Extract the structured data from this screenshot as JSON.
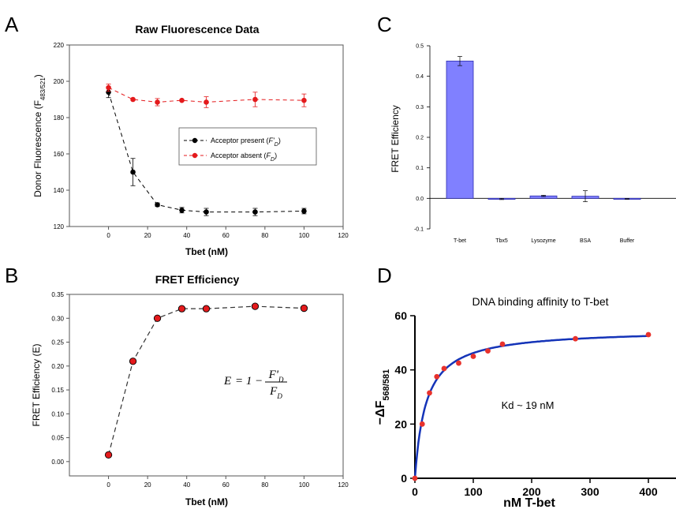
{
  "panel_letters": [
    "A",
    "B",
    "C",
    "D"
  ],
  "colors": {
    "black_series": "#000000",
    "red_series": "#e41a1c",
    "bar_fill": "#8080ff",
    "bar_stroke": "#2b2bb0",
    "fit_curve": "#1534b8",
    "points_d": "#e8322c",
    "frame": "#555555"
  },
  "chart_data": [
    {
      "panel": "A",
      "type": "scatter",
      "title": "Raw Fluorescence Data",
      "xlabel": "Tbet (nM)",
      "ylabel_main": "Donor Fluorescence (F",
      "ylabel_sub": "483/521",
      "ylabel_close": ")",
      "xlim": [
        -20,
        120
      ],
      "ylim": [
        120,
        220
      ],
      "xticks": [
        0,
        20,
        40,
        60,
        80,
        100,
        120
      ],
      "yticks": [
        120,
        140,
        160,
        180,
        200,
        220
      ],
      "grid": false,
      "legend_position": "right",
      "series": [
        {
          "name": "Acceptor present",
          "legend_var": "F'D",
          "color": "#000000",
          "x": [
            0,
            12.5,
            25,
            37.5,
            50,
            75,
            100
          ],
          "y": [
            194,
            150,
            132,
            129,
            128,
            128,
            128.5
          ],
          "err": [
            3,
            7.5,
            1,
            1.5,
            2,
            2,
            1.5
          ]
        },
        {
          "name": "Acceptor absent",
          "legend_var": "FD",
          "color": "#e41a1c",
          "x": [
            0,
            12.5,
            25,
            37.5,
            50,
            75,
            100
          ],
          "y": [
            196.5,
            190,
            188.5,
            189.5,
            188.5,
            190,
            189.5
          ],
          "err": [
            2,
            0.5,
            2,
            0.5,
            3,
            4,
            3.5
          ]
        }
      ]
    },
    {
      "panel": "B",
      "type": "line",
      "title": "FRET Efficiency",
      "xlabel": "Tbet (nM)",
      "ylabel": "FRET Efficiency (E)",
      "xlim": [
        -20,
        120
      ],
      "ylim": [
        -0.03,
        0.35
      ],
      "xticks": [
        0,
        20,
        40,
        60,
        80,
        100,
        120
      ],
      "yticks": [
        "0.00",
        "0.05",
        "0.10",
        "0.15",
        "0.20",
        "0.25",
        "0.30",
        "0.35"
      ],
      "grid": false,
      "annotation": {
        "lhs": "E",
        "eq": "= 1 −",
        "num": "F'D",
        "den": "FD"
      },
      "series": [
        {
          "color": "#e41a1c",
          "x": [
            0,
            12.5,
            25,
            37.5,
            50,
            75,
            100
          ],
          "y": [
            0.014,
            0.21,
            0.3,
            0.32,
            0.32,
            0.325,
            0.321
          ]
        }
      ]
    },
    {
      "panel": "C",
      "type": "bar",
      "title": "",
      "xlabel": "",
      "ylabel": "FRET Efficiency",
      "ylim": [
        -0.1,
        0.5
      ],
      "yticks": [
        "-0.1",
        "0.0",
        "0.1",
        "0.2",
        "0.3",
        "0.4",
        "0.5"
      ],
      "grid": false,
      "categories": [
        "T-bet",
        "Tbx5",
        "Lysozyme",
        "BSA",
        "Buffer"
      ],
      "values": [
        0.45,
        -0.002,
        0.008,
        0.007,
        -0.002
      ],
      "err": [
        0.015,
        0.002,
        0.002,
        0.018,
        0.001
      ]
    },
    {
      "panel": "D",
      "type": "scatter",
      "title": "DNA binding affinity to T-bet",
      "xlabel": "nM T-bet",
      "ylabel_main": "−ΔF",
      "ylabel_sub": "568/581",
      "xlim": [
        0,
        450
      ],
      "ylim": [
        0,
        60
      ],
      "xticks": [
        0,
        100,
        200,
        300,
        400
      ],
      "yticks": [
        0,
        20,
        40,
        60
      ],
      "grid": false,
      "annotation": "Kd ~ 19 nM",
      "series": [
        {
          "type": "scatter",
          "color": "#e8322c",
          "x": [
            0,
            12.5,
            25,
            37.5,
            50,
            75,
            100,
            125,
            150,
            275,
            400
          ],
          "y": [
            0,
            20,
            31.5,
            37.5,
            40.5,
            42.5,
            45,
            47,
            49.5,
            51.5,
            53
          ]
        },
        {
          "type": "line",
          "color": "#1534b8",
          "fit": {
            "model": "bmax*x/(kd+x)",
            "bmax": 55,
            "kd": 19
          }
        }
      ]
    }
  ]
}
